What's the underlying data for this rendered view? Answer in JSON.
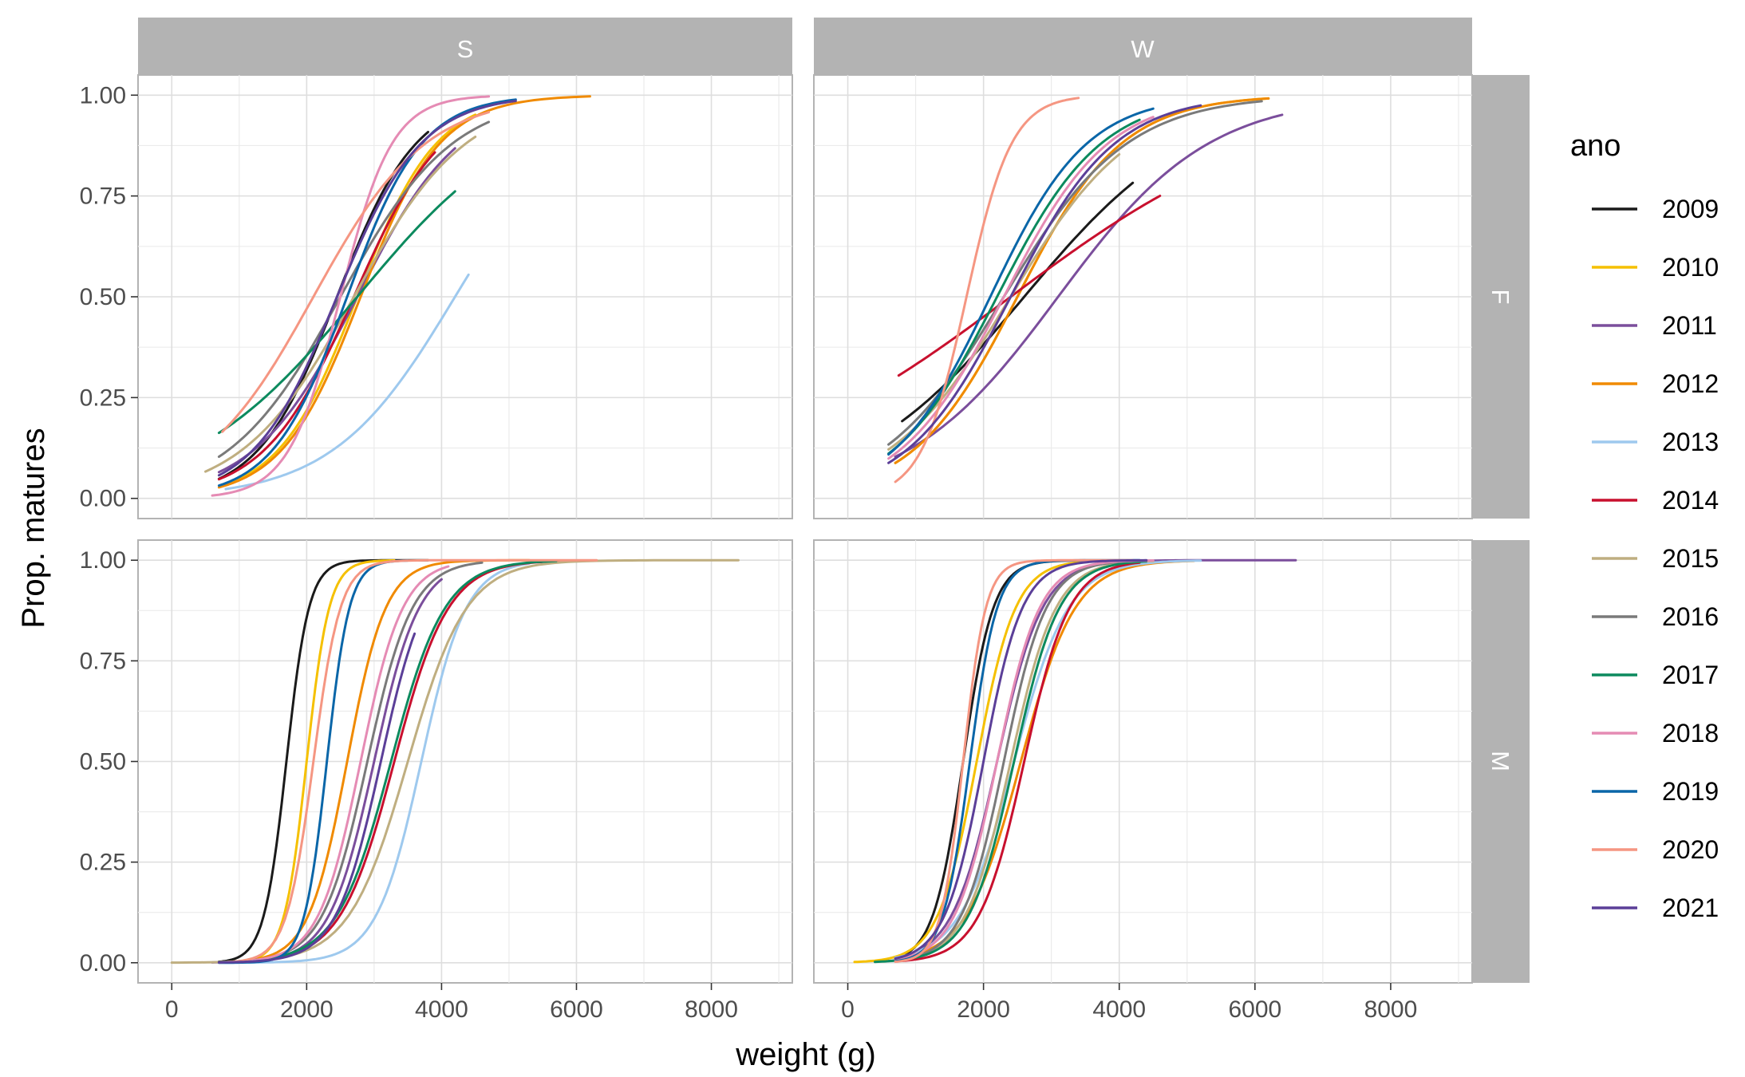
{
  "chart_data": {
    "type": "line",
    "facet_cols": [
      "S",
      "W"
    ],
    "facet_rows": [
      "F",
      "M"
    ],
    "xlabel": "weight (g)",
    "ylabel": "Prop. matures",
    "xlim": [
      -500,
      9200
    ],
    "ylim": [
      -0.05,
      1.05
    ],
    "x_ticks": [
      "0",
      "2000",
      "4000",
      "6000",
      "8000"
    ],
    "y_ticks": [
      "0.00",
      "0.25",
      "0.50",
      "0.75",
      "1.00"
    ],
    "grid": true,
    "legend": {
      "title": "ano",
      "position": "right",
      "entries": [
        {
          "label": "2009",
          "color": "#1a1a1a"
        },
        {
          "label": "2010",
          "color": "#f5c000"
        },
        {
          "label": "2011",
          "color": "#7b4e9c"
        },
        {
          "label": "2012",
          "color": "#f08a00"
        },
        {
          "label": "2013",
          "color": "#9ec9ee"
        },
        {
          "label": "2014",
          "color": "#c8102e"
        },
        {
          "label": "2015",
          "color": "#bfae80"
        },
        {
          "label": "2016",
          "color": "#7a7a7a"
        },
        {
          "label": "2017",
          "color": "#0c8a5e"
        },
        {
          "label": "2018",
          "color": "#e58bb4"
        },
        {
          "label": "2019",
          "color": "#0a66a8"
        },
        {
          "label": "2020",
          "color": "#f59682"
        },
        {
          "label": "2021",
          "color": "#5b3f98"
        }
      ]
    },
    "panels": [
      {
        "col": "S",
        "row": "F",
        "series": [
          {
            "name": "2009",
            "x0": 700,
            "x1": 3800,
            "x50": 2450,
            "slope": 0.0017
          },
          {
            "name": "2010",
            "x0": 800,
            "x1": 4500,
            "x50": 2750,
            "slope": 0.0017
          },
          {
            "name": "2011",
            "x0": 700,
            "x1": 4200,
            "x50": 2750,
            "slope": 0.0013
          },
          {
            "name": "2012",
            "x0": 700,
            "x1": 6200,
            "x50": 2800,
            "slope": 0.0017
          },
          {
            "name": "2013",
            "x0": 800,
            "x1": 4400,
            "x50": 4200,
            "slope": 0.0011
          },
          {
            "name": "2014",
            "x0": 700,
            "x1": 3900,
            "x50": 2700,
            "slope": 0.0015
          },
          {
            "name": "2015",
            "x0": 500,
            "x1": 4500,
            "x50": 2700,
            "slope": 0.0012
          },
          {
            "name": "2016",
            "x0": 700,
            "x1": 4700,
            "x50": 2500,
            "slope": 0.0012
          },
          {
            "name": "2017",
            "x0": 700,
            "x1": 4200,
            "x50": 2750,
            "slope": 0.0008
          },
          {
            "name": "2018",
            "x0": 600,
            "x1": 4700,
            "x50": 2500,
            "slope": 0.0026
          },
          {
            "name": "2019",
            "x0": 700,
            "x1": 5100,
            "x50": 2600,
            "slope": 0.0018
          },
          {
            "name": "2020",
            "x0": 750,
            "x1": 4700,
            "x50": 2100,
            "slope": 0.0012
          },
          {
            "name": "2021",
            "x0": 700,
            "x1": 5100,
            "x50": 2450,
            "slope": 0.0016
          }
        ]
      },
      {
        "col": "W",
        "row": "F",
        "series": [
          {
            "name": "2009",
            "x0": 800,
            "x1": 4200,
            "x50": 2600,
            "slope": 0.0008
          },
          {
            "name": "2010",
            "x0": 700,
            "x1": 6200,
            "x50": 2500,
            "slope": 0.0013
          },
          {
            "name": "2011",
            "x0": 700,
            "x1": 6400,
            "x50": 3100,
            "slope": 0.0009
          },
          {
            "name": "2012",
            "x0": 700,
            "x1": 6200,
            "x50": 2500,
            "slope": 0.0013
          },
          {
            "name": "2013",
            "x0": 600,
            "x1": 4300,
            "x50": 2300,
            "slope": 0.0011
          },
          {
            "name": "2014",
            "x0": 750,
            "x1": 4600,
            "x50": 2400,
            "slope": 0.0005
          },
          {
            "name": "2015",
            "x0": 600,
            "x1": 4000,
            "x50": 2400,
            "slope": 0.0011
          },
          {
            "name": "2016",
            "x0": 600,
            "x1": 6100,
            "x50": 2300,
            "slope": 0.0011
          },
          {
            "name": "2017",
            "x0": 600,
            "x1": 4300,
            "x50": 2200,
            "slope": 0.0013
          },
          {
            "name": "2018",
            "x0": 600,
            "x1": 4500,
            "x50": 2300,
            "slope": 0.0013
          },
          {
            "name": "2019",
            "x0": 600,
            "x1": 4500,
            "x50": 2100,
            "slope": 0.0014
          },
          {
            "name": "2020",
            "x0": 700,
            "x1": 3400,
            "x50": 1750,
            "slope": 0.003
          },
          {
            "name": "2021",
            "x0": 600,
            "x1": 5200,
            "x50": 2400,
            "slope": 0.0013
          }
        ]
      },
      {
        "col": "S",
        "row": "M",
        "series": [
          {
            "name": "2009",
            "x0": 700,
            "x1": 3800,
            "x50": 1700,
            "slope": 0.006
          },
          {
            "name": "2010",
            "x0": 700,
            "x1": 3300,
            "x50": 2000,
            "slope": 0.006
          },
          {
            "name": "2011",
            "x0": 600,
            "x1": 4000,
            "x50": 3000,
            "slope": 0.003
          },
          {
            "name": "2012",
            "x0": 700,
            "x1": 5300,
            "x50": 2600,
            "slope": 0.0035
          },
          {
            "name": "2013",
            "x0": 700,
            "x1": 5300,
            "x50": 3700,
            "slope": 0.003
          },
          {
            "name": "2014",
            "x0": 700,
            "x1": 5900,
            "x50": 3300,
            "slope": 0.0025
          },
          {
            "name": "2015",
            "x0": 0,
            "x1": 8400,
            "x50": 3500,
            "slope": 0.0023
          },
          {
            "name": "2016",
            "x0": 700,
            "x1": 4600,
            "x50": 2900,
            "slope": 0.003
          },
          {
            "name": "2017",
            "x0": 700,
            "x1": 5700,
            "x50": 3250,
            "slope": 0.0025
          },
          {
            "name": "2018",
            "x0": 700,
            "x1": 4100,
            "x50": 2800,
            "slope": 0.0032
          },
          {
            "name": "2019",
            "x0": 700,
            "x1": 3500,
            "x50": 2300,
            "slope": 0.006
          },
          {
            "name": "2020",
            "x0": 700,
            "x1": 6300,
            "x50": 2100,
            "slope": 0.005
          },
          {
            "name": "2021",
            "x0": 700,
            "x1": 3600,
            "x50": 3100,
            "slope": 0.003
          }
        ]
      },
      {
        "col": "W",
        "row": "M",
        "series": [
          {
            "name": "2009",
            "x0": 700,
            "x1": 3500,
            "x50": 1700,
            "slope": 0.0045
          },
          {
            "name": "2010",
            "x0": 100,
            "x1": 3500,
            "x50": 1900,
            "slope": 0.0035
          },
          {
            "name": "2011",
            "x0": 700,
            "x1": 6600,
            "x50": 2200,
            "slope": 0.003
          },
          {
            "name": "2012",
            "x0": 700,
            "x1": 5100,
            "x50": 2550,
            "slope": 0.0025
          },
          {
            "name": "2013",
            "x0": 700,
            "x1": 5200,
            "x50": 2450,
            "slope": 0.0025
          },
          {
            "name": "2014",
            "x0": 800,
            "x1": 4300,
            "x50": 2600,
            "slope": 0.003
          },
          {
            "name": "2015",
            "x0": 700,
            "x1": 4500,
            "x50": 2400,
            "slope": 0.003
          },
          {
            "name": "2016",
            "x0": 600,
            "x1": 4400,
            "x50": 2300,
            "slope": 0.0032
          },
          {
            "name": "2017",
            "x0": 400,
            "x1": 4400,
            "x50": 2450,
            "slope": 0.003
          },
          {
            "name": "2018",
            "x0": 700,
            "x1": 4500,
            "x50": 2200,
            "slope": 0.0032
          },
          {
            "name": "2019",
            "x0": 700,
            "x1": 4300,
            "x50": 1800,
            "slope": 0.005
          },
          {
            "name": "2020",
            "x0": 700,
            "x1": 4200,
            "x50": 1700,
            "slope": 0.006
          },
          {
            "name": "2021",
            "x0": 700,
            "x1": 4400,
            "x50": 2000,
            "slope": 0.0035
          }
        ]
      }
    ]
  }
}
